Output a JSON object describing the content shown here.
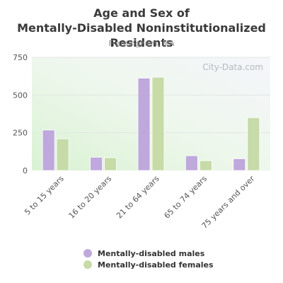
{
  "chart_data": {
    "type": "bar",
    "title": "Age and Sex of Mentally-Disabled Noninstitutionalized Residents",
    "subtitle": "Framingham, MA",
    "watermark": "City-Data.com",
    "categories": [
      "5 to 15 years",
      "16 to 20 years",
      "21 to 64 years",
      "65 to 74 years",
      "75 years and over"
    ],
    "series": [
      {
        "name": "Mentally-disabled males",
        "color": "#bfa8dc",
        "values": [
          268,
          88,
          612,
          98,
          78
        ]
      },
      {
        "name": "Mentally-disabled females",
        "color": "#c6dba8",
        "values": [
          210,
          85,
          618,
          65,
          350
        ]
      }
    ],
    "ylim": [
      0,
      750
    ],
    "yticks": [
      0,
      250,
      500,
      750
    ],
    "grid": true,
    "legend_position": "bottom"
  }
}
